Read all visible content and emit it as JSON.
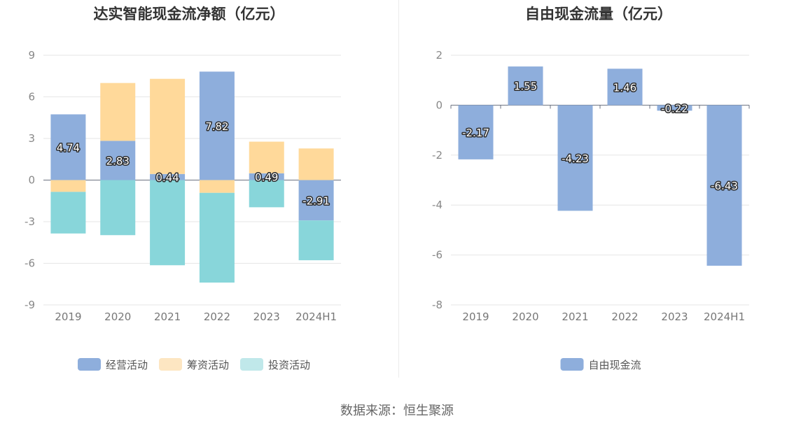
{
  "source_text": "数据来源：恒生聚源",
  "chart_data": [
    {
      "type": "bar",
      "stacked": true,
      "title": "达实智能现金流净额（亿元）",
      "categories": [
        "2019",
        "2020",
        "2021",
        "2022",
        "2023",
        "2024H1"
      ],
      "ylim": [
        -9,
        9
      ],
      "yticks": [
        9,
        6,
        3,
        0,
        -3,
        -6,
        -9
      ],
      "grid": true,
      "legend_position": "bottom",
      "series": [
        {
          "name": "经营活动",
          "color": "#8eaedc",
          "values": [
            4.74,
            2.83,
            0.44,
            7.82,
            0.49,
            -2.91
          ],
          "labels": [
            "4.74",
            "2.83",
            "0.44",
            "7.82",
            "0.49",
            "-2.91"
          ]
        },
        {
          "name": "筹资活动",
          "color": "#ffd99a",
          "values": [
            -0.85,
            4.17,
            6.86,
            -0.92,
            2.28,
            2.28
          ]
        },
        {
          "name": "投资活动",
          "color": "#88d6da",
          "values": [
            -3.0,
            -3.97,
            -6.14,
            -6.47,
            -1.96,
            -2.87
          ]
        }
      ],
      "legend": [
        {
          "name": "经营活动",
          "color": "#8eaedc"
        },
        {
          "name": "筹资活动",
          "color": "#fde6c2"
        },
        {
          "name": "投资活动",
          "color": "#c0e8ea"
        }
      ]
    },
    {
      "type": "bar",
      "title": "自由现金流量（亿元）",
      "categories": [
        "2019",
        "2020",
        "2021",
        "2022",
        "2023",
        "2024H1"
      ],
      "ylim": [
        -8,
        2
      ],
      "yticks": [
        2,
        0,
        -2,
        -4,
        -6,
        -8
      ],
      "grid": true,
      "legend_position": "bottom",
      "series": [
        {
          "name": "自由现金流",
          "color": "#8eaedc",
          "values": [
            -2.17,
            1.55,
            -4.23,
            1.46,
            -0.22,
            -6.43
          ],
          "labels": [
            "-2.17",
            "1.55",
            "-4.23",
            "1.46",
            "-0.22",
            "-6.43"
          ]
        }
      ],
      "legend": [
        {
          "name": "自由现金流",
          "color": "#8eaedc"
        }
      ]
    }
  ]
}
